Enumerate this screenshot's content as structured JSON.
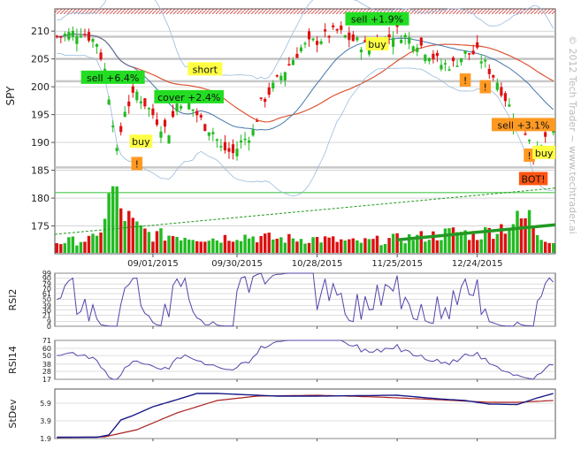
{
  "watermark": "© 2012 Tech Trader ~ www.techtrader.ai",
  "colors": {
    "up": "#22bb22",
    "down": "#dd1111",
    "grid": "#bbbbbb",
    "rsi_line": "#5544aa",
    "stdev_fast": "#1a1a88",
    "stdev_slow": "#aa2222",
    "ma_red": "#dd5533",
    "ma_blue": "#4477aa",
    "band": "#99bbdd",
    "green_label": "#22dd22",
    "yellow_label": "#ffff44",
    "orange_label": "#ff9922",
    "bot_label": "#ff5511"
  },
  "chart_data": [
    {
      "type": "candlestick",
      "ylabel": "SPY",
      "ylim": [
        170,
        214
      ],
      "yticks": [
        175,
        180,
        185,
        190,
        195,
        200,
        205,
        210
      ],
      "x_date_labels": [
        "09/01/2015",
        "09/30/2015",
        "10/28/2015",
        "11/25/2015",
        "12/24/2015"
      ],
      "x_label_index": [
        24,
        45,
        65,
        85,
        105
      ],
      "n_bars": 125,
      "close_keypoints": [
        [
          0,
          209
        ],
        [
          6,
          210
        ],
        [
          10,
          208
        ],
        [
          12,
          203
        ],
        [
          14,
          194
        ],
        [
          15,
          188
        ],
        [
          17,
          196
        ],
        [
          20,
          199
        ],
        [
          24,
          195
        ],
        [
          26,
          193
        ],
        [
          28,
          192
        ],
        [
          30,
          197
        ],
        [
          32,
          198
        ],
        [
          34,
          196
        ],
        [
          37,
          193
        ],
        [
          39,
          192
        ],
        [
          41,
          189
        ],
        [
          44,
          188
        ],
        [
          46,
          190
        ],
        [
          49,
          192
        ],
        [
          51,
          197
        ],
        [
          54,
          200
        ],
        [
          57,
          203
        ],
        [
          61,
          207
        ],
        [
          64,
          208
        ],
        [
          67,
          209
        ],
        [
          70,
          210
        ],
        [
          72,
          209
        ],
        [
          75,
          208
        ],
        [
          78,
          207
        ],
        [
          80,
          208
        ],
        [
          83,
          209
        ],
        [
          85,
          210
        ],
        [
          87,
          209
        ],
        [
          90,
          208
        ],
        [
          93,
          206
        ],
        [
          96,
          204
        ],
        [
          99,
          204
        ],
        [
          102,
          206
        ],
        [
          105,
          206
        ],
        [
          108,
          203
        ],
        [
          110,
          201
        ],
        [
          112,
          198
        ],
        [
          114,
          195
        ],
        [
          116,
          193
        ],
        [
          118,
          191
        ],
        [
          119,
          188
        ],
        [
          120,
          188
        ],
        [
          121,
          189
        ],
        [
          122,
          191
        ],
        [
          124,
          192
        ]
      ],
      "volume_keypoints": [
        [
          0,
          0.15
        ],
        [
          10,
          0.2
        ],
        [
          14,
          0.9
        ],
        [
          16,
          0.6
        ],
        [
          20,
          0.35
        ],
        [
          24,
          0.25
        ],
        [
          30,
          0.25
        ],
        [
          40,
          0.2
        ],
        [
          45,
          0.25
        ],
        [
          55,
          0.2
        ],
        [
          65,
          0.2
        ],
        [
          75,
          0.15
        ],
        [
          85,
          0.2
        ],
        [
          95,
          0.25
        ],
        [
          100,
          0.3
        ],
        [
          105,
          0.25
        ],
        [
          110,
          0.35
        ],
        [
          115,
          0.45
        ],
        [
          118,
          0.5
        ],
        [
          120,
          0.3
        ],
        [
          124,
          0.15
        ]
      ],
      "horizontal_lines": [
        209,
        205,
        201,
        185.5,
        181
      ],
      "annotations": [
        {
          "text": "sell +6.4%",
          "idx": 14,
          "price": 201.0,
          "style": "green"
        },
        {
          "text": "short",
          "idx": 37,
          "price": 202.5,
          "style": "yellow"
        },
        {
          "text": "cover +2.4%",
          "idx": 33,
          "price": 197.5,
          "style": "green"
        },
        {
          "text": "buy",
          "idx": 21,
          "price": 189.5,
          "style": "yellow"
        },
        {
          "text": "!",
          "idx": 20,
          "price": 185.5,
          "style": "orange"
        },
        {
          "text": "sell +1.9%",
          "idx": 80,
          "price": 211.5,
          "style": "green"
        },
        {
          "text": "buy",
          "idx": 80,
          "price": 207.0,
          "style": "yellow"
        },
        {
          "text": "!",
          "idx": 102,
          "price": 200.5,
          "style": "orange"
        },
        {
          "text": "!",
          "idx": 107,
          "price": 199.3,
          "style": "orange"
        },
        {
          "text": "sell +3.1%",
          "idx": 120,
          "price": 192.5,
          "style": "orange"
        },
        {
          "text": "!",
          "idx": 118,
          "price": 187.0,
          "style": "orange"
        },
        {
          "text": "buy",
          "idx": 124,
          "price": 187.5,
          "style": "yellow"
        },
        {
          "text": "BOT!",
          "idx": 119,
          "price": 182.8,
          "style": "bot"
        }
      ]
    },
    {
      "type": "line",
      "ylabel": "RSI2",
      "ylim": [
        0,
        99
      ],
      "yticks": [
        0,
        9,
        21,
        30,
        39,
        50,
        61,
        70,
        79,
        90,
        99
      ]
    },
    {
      "type": "line",
      "ylabel": "RSI14",
      "ylim": [
        17,
        71
      ],
      "yticks": [
        17,
        28,
        38,
        50,
        60,
        71
      ]
    },
    {
      "type": "line",
      "ylabel": "StDev",
      "ylim": [
        1.9,
        7.5
      ],
      "yticks": [
        1.9,
        3.9,
        5.9
      ],
      "series": [
        {
          "keypoints": [
            [
              0,
              2.05
            ],
            [
              10,
              2.05
            ],
            [
              13,
              2.3
            ],
            [
              16,
              4.0
            ],
            [
              19,
              4.5
            ],
            [
              24,
              5.5
            ],
            [
              30,
              6.3
            ],
            [
              35,
              7.0
            ],
            [
              40,
              7.0
            ],
            [
              55,
              6.7
            ],
            [
              65,
              6.7
            ],
            [
              75,
              6.75
            ],
            [
              85,
              6.8
            ],
            [
              95,
              6.4
            ],
            [
              102,
              6.2
            ],
            [
              108,
              5.8
            ],
            [
              115,
              5.75
            ],
            [
              120,
              6.5
            ],
            [
              124,
              7.0
            ]
          ]
        },
        {
          "keypoints": [
            [
              0,
              2.0
            ],
            [
              12,
              2.1
            ],
            [
              20,
              2.9
            ],
            [
              30,
              4.8
            ],
            [
              40,
              6.2
            ],
            [
              50,
              6.7
            ],
            [
              65,
              6.8
            ],
            [
              80,
              6.6
            ],
            [
              95,
              6.3
            ],
            [
              108,
              6.0
            ],
            [
              115,
              6.0
            ],
            [
              124,
              6.2
            ]
          ]
        }
      ]
    }
  ]
}
